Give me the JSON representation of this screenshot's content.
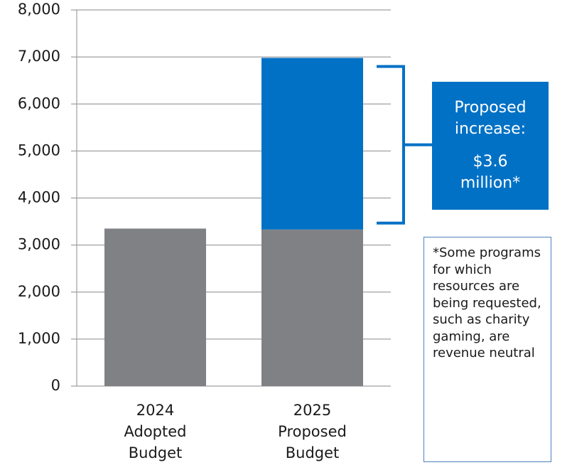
{
  "chart_data": {
    "type": "stacked_bar",
    "categories": [
      "2024 Adopted Budget",
      "2025 Proposed Budget"
    ],
    "series": [
      {
        "color": "#808184",
        "values": [
          3350,
          3330
        ]
      },
      {
        "color": "#0071c5",
        "values": [
          null,
          3650
        ]
      }
    ],
    "ylim": [
      0,
      8000
    ],
    "yticks": [
      {
        "value": 0,
        "label": "0"
      },
      {
        "value": 1000,
        "label": "1,000"
      },
      {
        "value": 2000,
        "label": "2,000"
      },
      {
        "value": 3000,
        "label": "3,000"
      },
      {
        "value": 4000,
        "label": "4,000"
      },
      {
        "value": 5000,
        "label": "5,000"
      },
      {
        "value": 6000,
        "label": "6,000"
      },
      {
        "value": 7000,
        "label": "7,000"
      },
      {
        "value": 8000,
        "label": "8,000"
      }
    ],
    "grid": true,
    "annotations": {
      "callout_label": "Proposed increase:",
      "callout_value": "$3.6 million*",
      "note": "*Some programs for which resources are being requested, such as charity gaming, are revenue neutral"
    }
  }
}
